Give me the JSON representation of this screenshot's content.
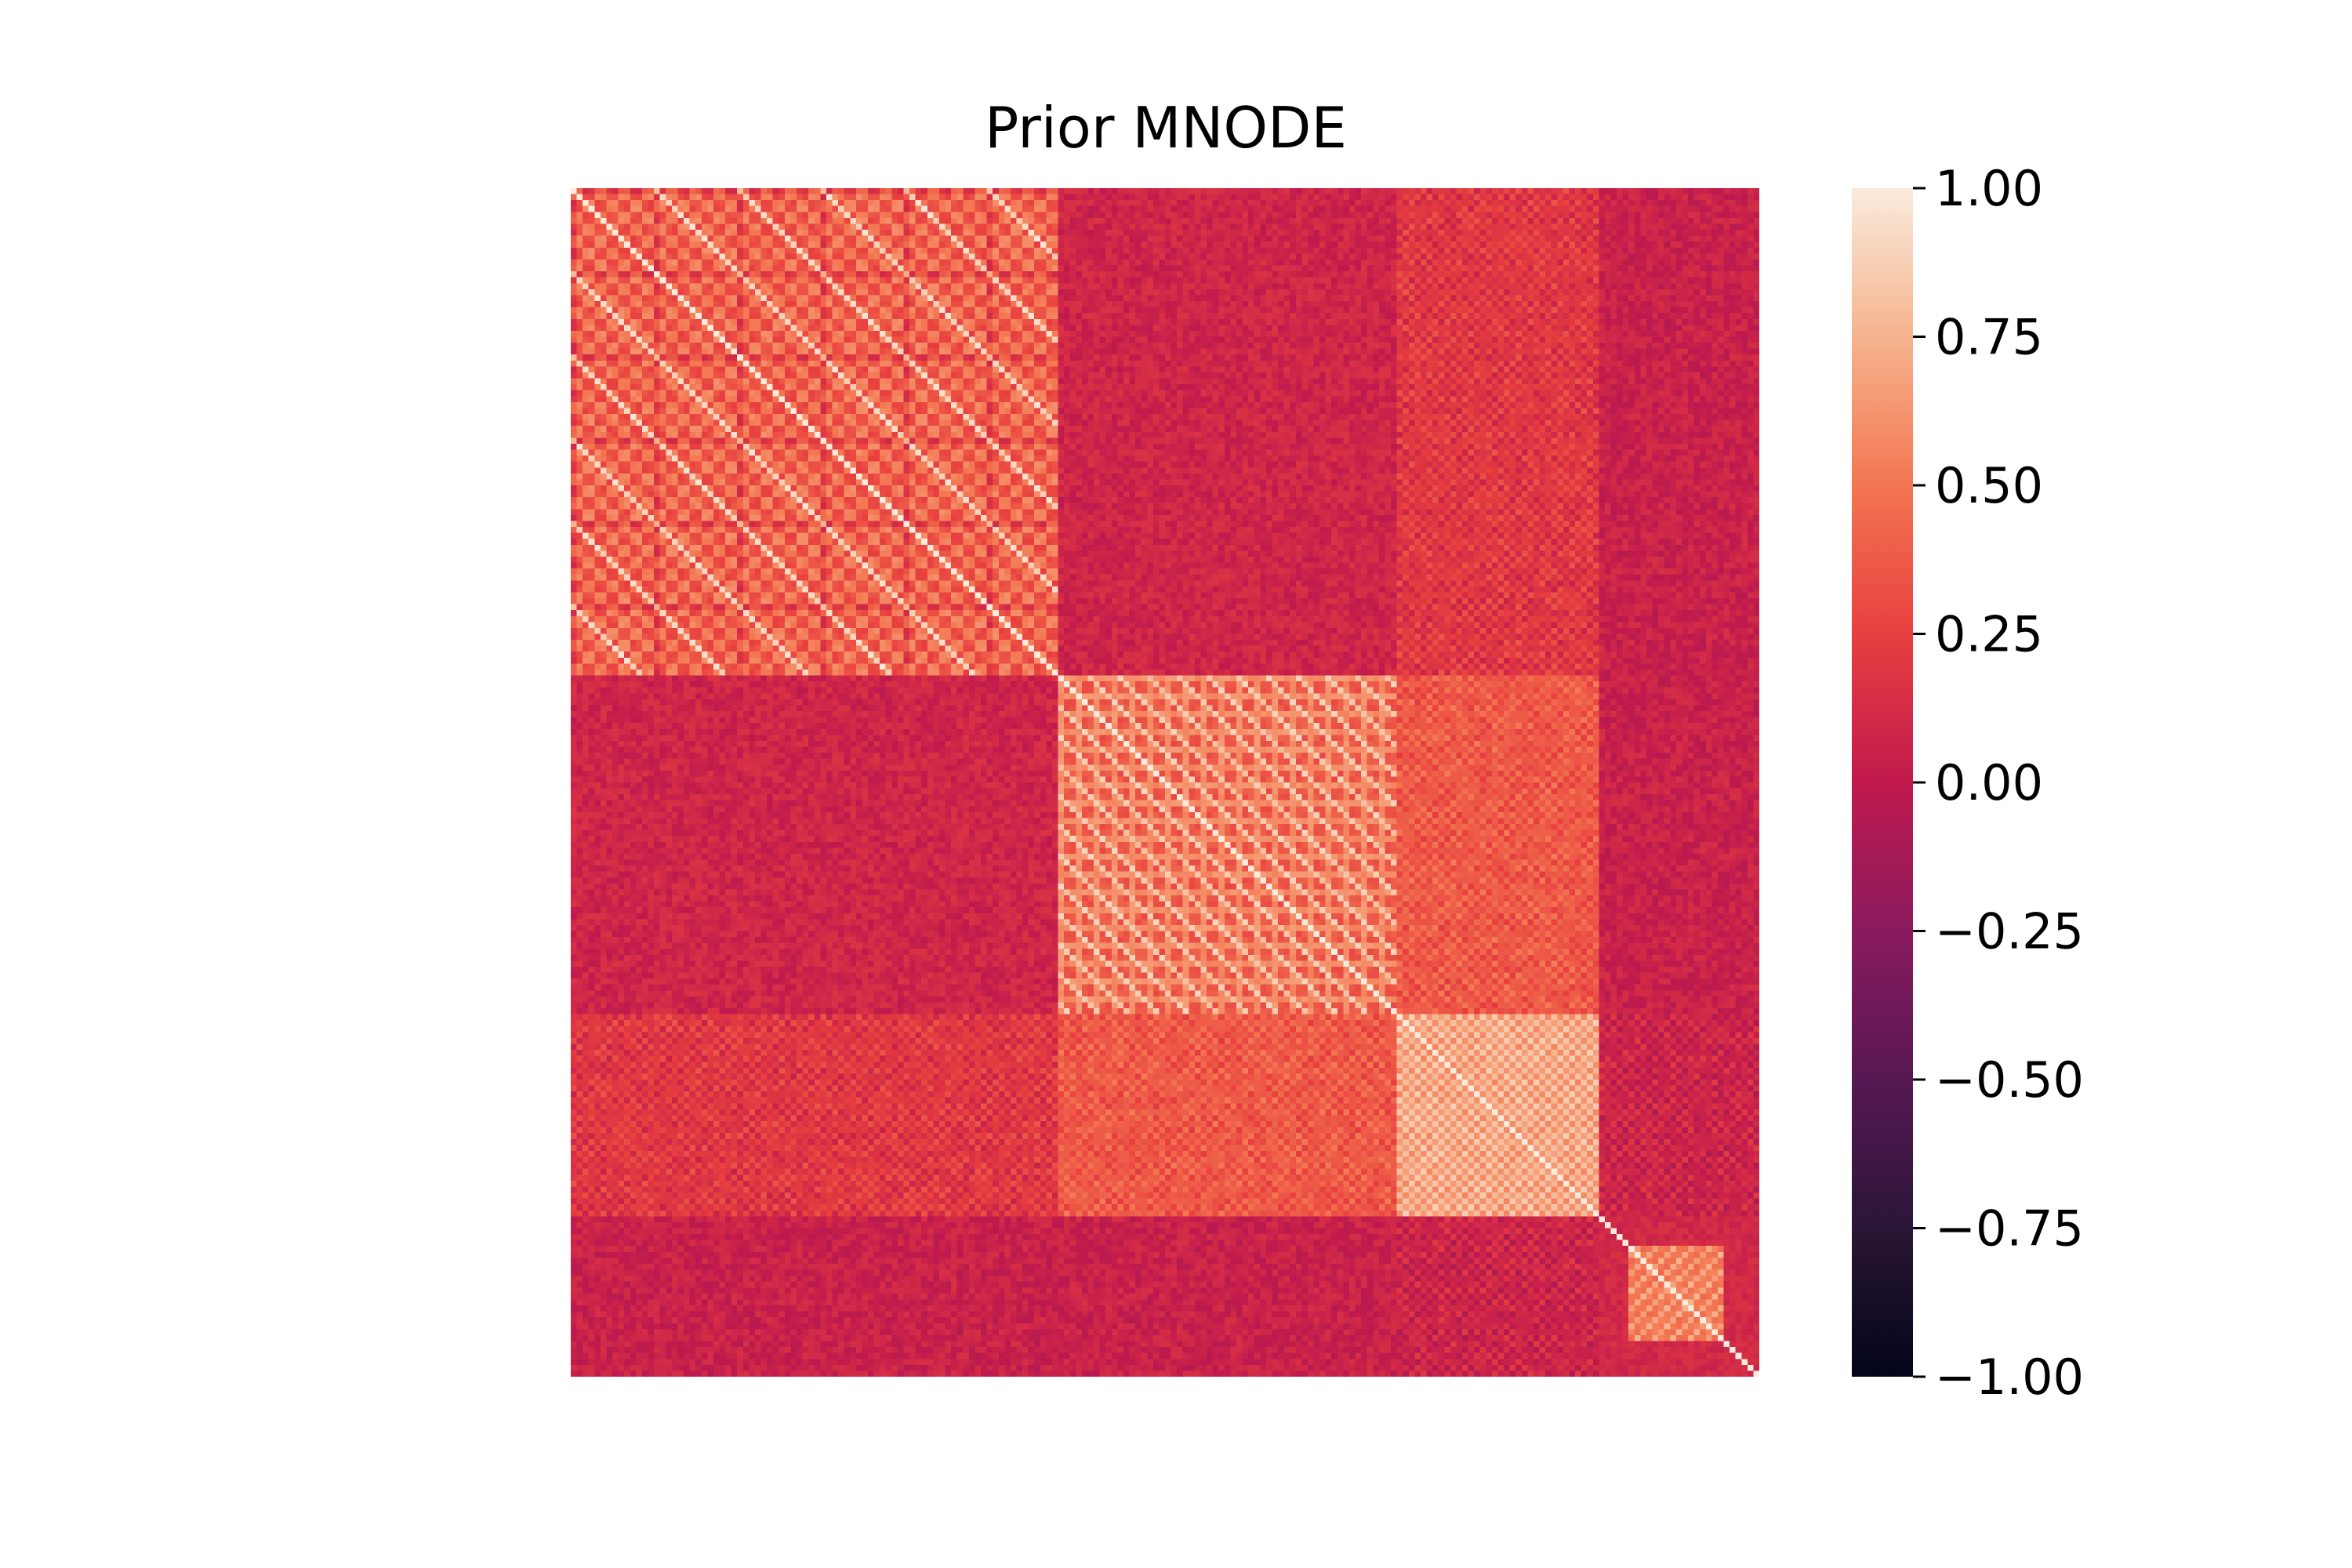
{
  "chart_data": {
    "type": "heatmap",
    "title": "Prior MNODE",
    "xlabel": "",
    "ylabel": "",
    "n_variables": 200,
    "blocks": [
      {
        "start": 0,
        "end": 82,
        "within_block_mean": 0.4,
        "pattern": "checkerboard",
        "period": 14,
        "sub_period": 2
      },
      {
        "start": 82,
        "end": 139,
        "within_block_mean": 0.55,
        "pattern": "diagonal-stripes",
        "period": 5
      },
      {
        "start": 139,
        "end": 173,
        "within_block_mean": 0.75,
        "pattern": "fine-checkerboard",
        "period": 2
      },
      {
        "start": 173,
        "end": 200,
        "within_block_mean": 0.1,
        "pattern": "sub-block",
        "sub_block": [
          178,
          194
        ],
        "sub_block_mean": 0.55
      }
    ],
    "cross_block_means": [
      {
        "blocks": [
          0,
          1
        ],
        "mean": 0.08
      },
      {
        "blocks": [
          0,
          2
        ],
        "mean": 0.18
      },
      {
        "blocks": [
          0,
          3
        ],
        "mean": 0.05
      },
      {
        "blocks": [
          1,
          2
        ],
        "mean": 0.35
      },
      {
        "blocks": [
          1,
          3
        ],
        "mean": 0.05
      },
      {
        "blocks": [
          2,
          3
        ],
        "mean": 0.05
      }
    ],
    "diagonal_value": 1.0,
    "zlim": [
      -1.0,
      1.0
    ],
    "colormap": "rocket",
    "colorbar": {
      "ticks": [
        1.0,
        0.75,
        0.5,
        0.25,
        0.0,
        -0.25,
        -0.5,
        -0.75,
        -1.0
      ],
      "tick_labels": [
        "1.00",
        "0.75",
        "0.50",
        "0.25",
        "0.00",
        "−0.25",
        "−0.50",
        "−0.75",
        "−1.00"
      ]
    },
    "grid": false,
    "legend": "colorbar-right"
  }
}
